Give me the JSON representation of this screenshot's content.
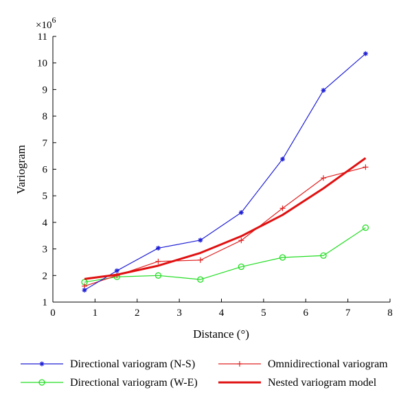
{
  "chart_data": {
    "type": "line",
    "title": "",
    "xlabel": "Distance (°)",
    "ylabel": "Variogram",
    "y_multiplier_label": "×10",
    "y_multiplier_exponent": "6",
    "xlim": [
      0,
      8
    ],
    "ylim": [
      1,
      11
    ],
    "x_ticks": [
      0,
      1,
      2,
      3,
      4,
      5,
      6,
      7,
      8
    ],
    "y_ticks": [
      1,
      2,
      3,
      4,
      5,
      6,
      7,
      8,
      9,
      10,
      11
    ],
    "grid": false,
    "legend_position": "bottom",
    "series": [
      {
        "name": "Directional variogram (N-S)",
        "color": "#1f1fd6",
        "marker": "asterisk",
        "x": [
          0.75,
          1.52,
          2.5,
          3.5,
          4.47,
          5.45,
          6.42,
          7.42
        ],
        "y": [
          1.45,
          2.18,
          3.03,
          3.33,
          4.37,
          6.38,
          8.97,
          10.35
        ]
      },
      {
        "name": "Omnidirectional variogram",
        "color": "#e02020",
        "marker": "plus",
        "x": [
          0.75,
          1.52,
          2.5,
          3.5,
          4.47,
          5.45,
          6.42,
          7.42
        ],
        "y": [
          1.6,
          2.0,
          2.53,
          2.58,
          3.32,
          4.53,
          5.67,
          6.08
        ]
      },
      {
        "name": "Directional variogram (W-E)",
        "color": "#22dd22",
        "marker": "circle",
        "x": [
          0.75,
          1.52,
          2.5,
          3.5,
          4.47,
          5.45,
          6.42,
          7.42
        ],
        "y": [
          1.75,
          1.95,
          2.0,
          1.85,
          2.33,
          2.68,
          2.75,
          3.8
        ]
      },
      {
        "name": "Nested variogram model",
        "color": "#e01010",
        "marker": "none",
        "x": [
          0.75,
          1.52,
          2.5,
          3.5,
          4.47,
          5.45,
          6.42,
          7.42
        ],
        "y": [
          1.87,
          2.03,
          2.37,
          2.85,
          3.48,
          4.28,
          5.28,
          6.42
        ]
      }
    ]
  }
}
